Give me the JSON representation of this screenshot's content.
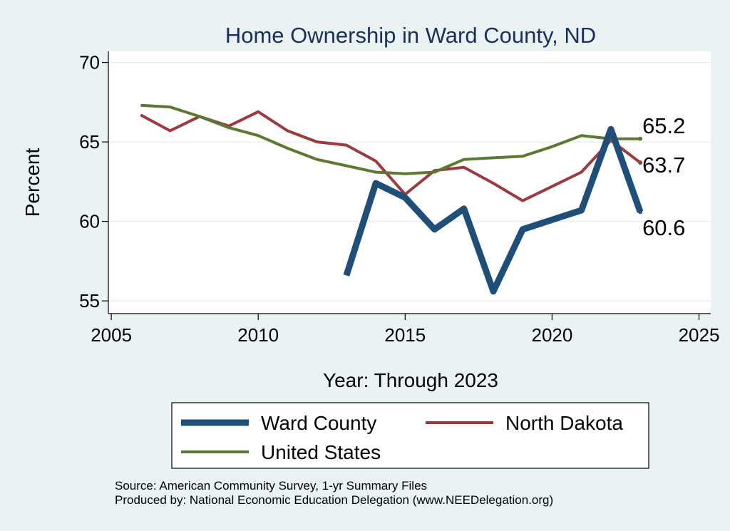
{
  "chart_data": {
    "type": "line",
    "title": "Home Ownership in Ward County, ND",
    "xlabel": "Year: Through 2023",
    "ylabel": "Percent",
    "xlim": [
      2004.9,
      2025.4
    ],
    "ylim": [
      54.2,
      70.7
    ],
    "xticks": [
      2005,
      2010,
      2015,
      2020,
      2025
    ],
    "yticks": [
      55,
      60,
      65,
      70
    ],
    "grid": "horizontal",
    "legend_position": "bottom",
    "series": [
      {
        "name": "Ward County",
        "color": "#1f4e79",
        "x": [
          2013,
          2014,
          2015,
          2016,
          2017,
          2018,
          2019,
          2020,
          2021,
          2022,
          2023
        ],
        "y": [
          56.6,
          62.4,
          61.5,
          59.5,
          60.8,
          55.6,
          59.5,
          60.1,
          60.7,
          65.8,
          60.6
        ],
        "end_label": "60.6"
      },
      {
        "name": "North Dakota",
        "color": "#9b3a3f",
        "x": [
          2006,
          2007,
          2008,
          2009,
          2010,
          2011,
          2012,
          2013,
          2014,
          2015,
          2016,
          2017,
          2018,
          2019,
          2020,
          2021,
          2022,
          2023
        ],
        "y": [
          66.7,
          65.7,
          66.6,
          66.0,
          66.9,
          65.7,
          65.0,
          64.8,
          63.8,
          61.7,
          63.2,
          63.4,
          62.4,
          61.3,
          62.2,
          63.1,
          65.1,
          63.7
        ],
        "end_label": "63.7"
      },
      {
        "name": "United States",
        "color": "#5a7a31",
        "x": [
          2006,
          2007,
          2008,
          2009,
          2010,
          2011,
          2012,
          2013,
          2014,
          2015,
          2016,
          2017,
          2018,
          2019,
          2020,
          2021,
          2022,
          2023
        ],
        "y": [
          67.3,
          67.2,
          66.6,
          65.9,
          65.4,
          64.6,
          63.9,
          63.5,
          63.1,
          63.0,
          63.1,
          63.9,
          64.0,
          64.1,
          64.7,
          65.4,
          65.2,
          65.2
        ],
        "end_label": "65.2"
      }
    ]
  },
  "footer": {
    "source": "Source: American Community Survey, 1-yr Summary Files",
    "produced": "Produced by: National Economic Education Delegation (www.NEEDelegation.org)"
  }
}
